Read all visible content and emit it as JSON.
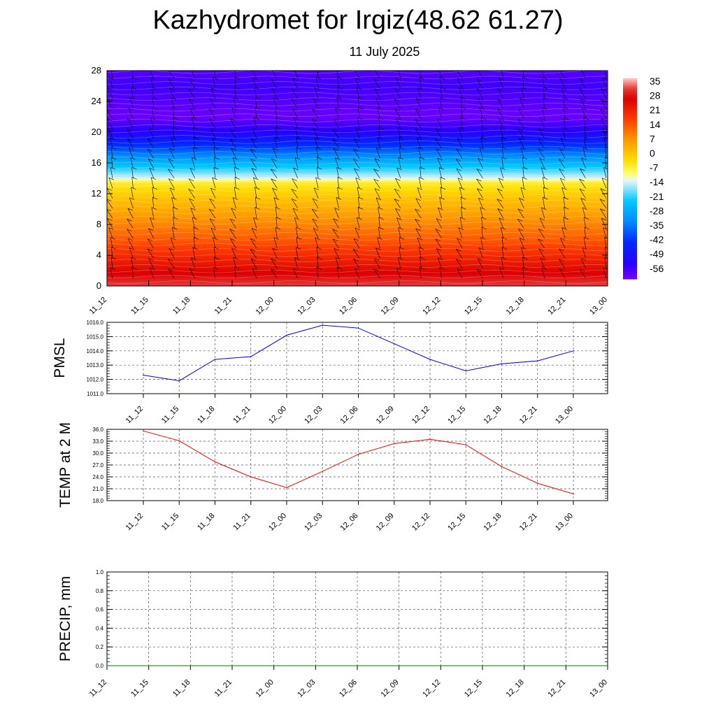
{
  "header": {
    "title": "Kazhydromet for Irgiz(48.62 61.27)",
    "subtitle": "11 July 2025"
  },
  "colors": {
    "pmsl_line": "#0000ff",
    "temp_line": "#ff0000",
    "precip_line": "#008000"
  },
  "chart_data": [
    {
      "type": "heatmap",
      "name": "temperature-wind-cross-section",
      "x_ticks": [
        "11_12",
        "11_15",
        "11_18",
        "11_21",
        "12_00",
        "12_03",
        "12_06",
        "12_09",
        "12_12",
        "12_15",
        "12_18",
        "12_21",
        "13_00"
      ],
      "y_ticks": [
        0,
        4,
        8,
        12,
        16,
        20,
        24,
        28
      ],
      "ylim": [
        0,
        28
      ],
      "colorbar_labels": [
        "35",
        "28",
        "21",
        "14",
        "7",
        "0",
        "-7",
        "-14",
        "-21",
        "-28",
        "-35",
        "-42",
        "-49",
        "-56"
      ],
      "color_range": [
        -63,
        35
      ],
      "levels": [
        0,
        2,
        4,
        6,
        8,
        10,
        12,
        13.5,
        14,
        16,
        18,
        20,
        22,
        24,
        26,
        28
      ],
      "level_temps": [
        30,
        24,
        18,
        12,
        7,
        2,
        -3,
        -8,
        -15,
        -28,
        -42,
        -55,
        -62,
        -60,
        -58,
        -60
      ],
      "wind_barbs": true,
      "grid": false
    },
    {
      "type": "line",
      "name": "pmsl",
      "ylabel": "PMSL",
      "x": [
        "11_12",
        "11_15",
        "11_18",
        "11_21",
        "12_00",
        "12_03",
        "12_06",
        "12_09",
        "12_12",
        "12_15",
        "12_18",
        "12_21",
        "13_00"
      ],
      "y_ticks": [
        "1011.0",
        "1012.0",
        "1013.0",
        "1014.0",
        "1015.0",
        "1016.0"
      ],
      "ylim": [
        1011,
        1016
      ],
      "series": [
        {
          "values": [
            1012.3,
            1011.9,
            1013.4,
            1013.6,
            1015.1,
            1015.8,
            1015.6,
            1014.5,
            1013.4,
            1012.6,
            1013.1,
            1013.3,
            1014.0
          ]
        }
      ],
      "grid": true
    },
    {
      "type": "line",
      "name": "temp2m",
      "ylabel": "TEMP at 2 M",
      "x": [
        "11_12",
        "11_15",
        "11_18",
        "11_21",
        "12_00",
        "12_03",
        "12_06",
        "12_09",
        "12_12",
        "12_15",
        "12_18",
        "12_21",
        "13_00"
      ],
      "y_ticks": [
        "18.0",
        "21.0",
        "24.0",
        "27.0",
        "30.0",
        "33.0",
        "36.0"
      ],
      "ylim": [
        18,
        36
      ],
      "series": [
        {
          "values": [
            35.6,
            33.1,
            27.8,
            24.0,
            21.3,
            25.4,
            29.7,
            32.4,
            33.5,
            32.1,
            26.6,
            22.4,
            19.7
          ]
        }
      ],
      "grid": true
    },
    {
      "type": "line",
      "name": "precip",
      "ylabel": "PRECIP, mm",
      "x": [
        "11_12",
        "11_15",
        "11_18",
        "11_21",
        "12_00",
        "12_03",
        "12_06",
        "12_09",
        "12_12",
        "12_15",
        "12_18",
        "12_21",
        "13_00"
      ],
      "y_ticks": [
        "0.0",
        "0.2",
        "0.4",
        "0.6",
        "0.8",
        "1.0"
      ],
      "ylim": [
        0,
        1
      ],
      "series": [
        {
          "values": [
            0,
            0,
            0,
            0,
            0,
            0,
            0,
            0,
            0,
            0,
            0,
            0,
            0
          ]
        }
      ],
      "grid": true
    }
  ]
}
